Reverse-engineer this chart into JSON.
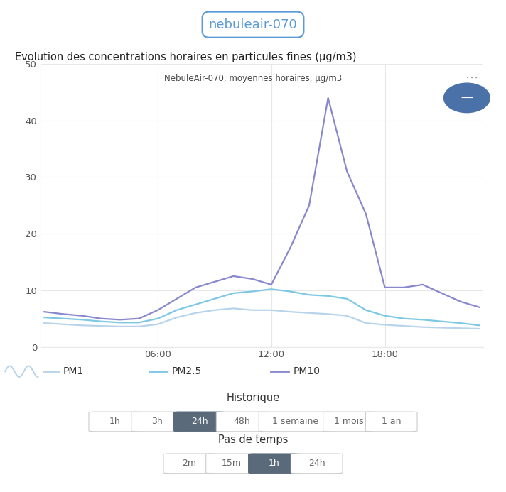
{
  "title_badge": "nebuleair-070",
  "title": "Evolution des concentrations horaires en particules fines (µg/m3)",
  "subtitle": "NebuleAir-070, moyennes horaires, µg/m3",
  "ylim": [
    0,
    50
  ],
  "yticks": [
    0,
    10,
    20,
    30,
    40,
    50
  ],
  "xtick_labels": [
    "06:00",
    "12:00",
    "18:00"
  ],
  "x_hours": [
    0,
    1,
    2,
    3,
    4,
    5,
    6,
    7,
    8,
    9,
    10,
    11,
    12,
    13,
    14,
    15,
    16,
    17,
    18,
    19,
    20,
    21,
    22,
    23
  ],
  "pm1": [
    4.2,
    4.0,
    3.8,
    3.7,
    3.6,
    3.6,
    4.0,
    5.2,
    6.0,
    6.5,
    6.8,
    6.5,
    6.5,
    6.2,
    6.0,
    5.8,
    5.5,
    4.2,
    3.9,
    3.7,
    3.5,
    3.4,
    3.3,
    3.2
  ],
  "pm25": [
    5.2,
    5.0,
    4.8,
    4.5,
    4.3,
    4.3,
    5.0,
    6.5,
    7.5,
    8.5,
    9.5,
    9.8,
    10.2,
    9.8,
    9.2,
    9.0,
    8.5,
    6.5,
    5.5,
    5.0,
    4.8,
    4.5,
    4.2,
    3.8
  ],
  "pm10": [
    6.2,
    5.8,
    5.5,
    5.0,
    4.8,
    5.0,
    6.5,
    8.5,
    10.5,
    11.5,
    12.5,
    12.0,
    11.0,
    17.5,
    25.0,
    44.0,
    31.0,
    23.5,
    10.5,
    10.5,
    11.0,
    9.5,
    8.0,
    7.0
  ],
  "color_pm1": "#b8d4ea",
  "color_pm25": "#7ec8e3",
  "color_pm10": "#8888cc",
  "bg_color": "#ffffff",
  "grid_color": "#e8e8e8",
  "historique_buttons": [
    "1h",
    "3h",
    "24h",
    "48h",
    "1 semaine",
    "1 mois",
    "1 an"
  ],
  "historique_active": "24h",
  "pas_de_temps_buttons": [
    "2m",
    "15m",
    "1h",
    "24h"
  ],
  "pas_de_temps_active": "1h",
  "active_btn_color": "#5a6a7a",
  "inactive_btn_edge": "#cccccc",
  "inactive_btn_text": "#666666"
}
